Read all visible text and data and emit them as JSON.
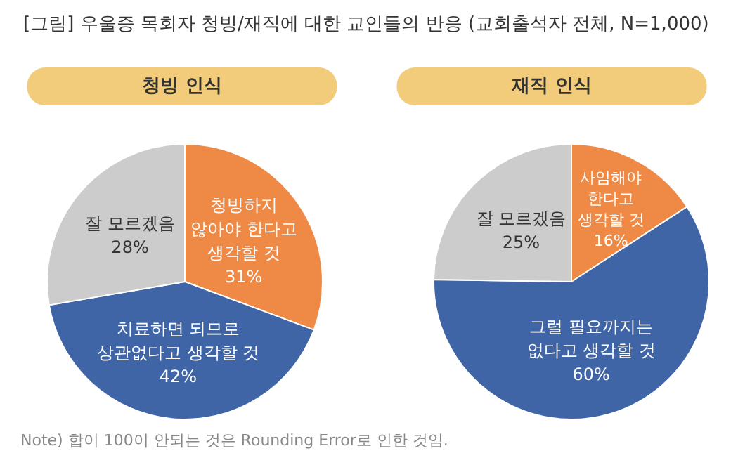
{
  "chart_data": [
    {
      "type": "pie",
      "title": "[그림] 우울증 목회자 청빙/재직에 대한 교인들의 반응 (교회출석자 전체, N=1,000)",
      "subtitle": "청빙 인식",
      "categories": [
        "청빙하지\n않아야 한다고\n생각할 것",
        "치료하면 되므로\n상관없다고 생각할 것",
        "잘 모르겠음"
      ],
      "values": [
        31,
        42,
        28
      ],
      "value_labels": [
        "31%",
        "42%",
        "28%"
      ],
      "colors": [
        "#ef8a46",
        "#3f65a6",
        "#cccccc"
      ]
    },
    {
      "type": "pie",
      "subtitle": "재직 인식",
      "categories": [
        "사임해야\n한다고\n생각할 것",
        "그럴 필요까지는\n없다고 생각할 것",
        "잘 모르겠음"
      ],
      "values": [
        16,
        60,
        25
      ],
      "value_labels": [
        "16%",
        "60%",
        "25%"
      ],
      "colors": [
        "#ef8a46",
        "#3f65a6",
        "#cccccc"
      ],
      "annotations": [
        "Note) 합이 100이 안되는 것은 Rounding Error로 인한 것임."
      ]
    }
  ]
}
